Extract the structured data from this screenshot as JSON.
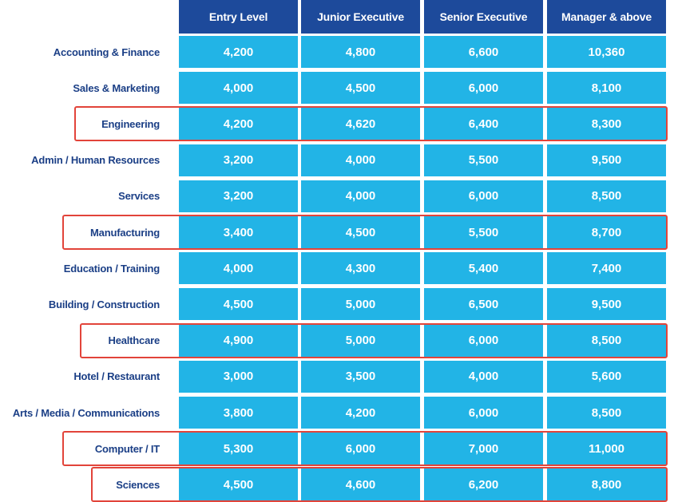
{
  "colors": {
    "header_bg": "#1d4a9b",
    "cell_bg": "#22b4e6",
    "label_text": "#1b3f86",
    "highlight": "#e2443a"
  },
  "chart_data": {
    "type": "table",
    "columns": [
      "Entry Level",
      "Junior Executive",
      "Senior Executive",
      "Manager & above"
    ],
    "rows": [
      {
        "label": "Accounting & Finance",
        "values": [
          "4,200",
          "4,800",
          "6,600",
          "10,360"
        ],
        "highlighted": false
      },
      {
        "label": "Sales & Marketing",
        "values": [
          "4,000",
          "4,500",
          "6,000",
          "8,100"
        ],
        "highlighted": false
      },
      {
        "label": "Engineering",
        "values": [
          "4,200",
          "4,620",
          "6,400",
          "8,300"
        ],
        "highlighted": true
      },
      {
        "label": "Admin / Human Resources",
        "values": [
          "3,200",
          "4,000",
          "5,500",
          "9,500"
        ],
        "highlighted": false
      },
      {
        "label": "Services",
        "values": [
          "3,200",
          "4,000",
          "6,000",
          "8,500"
        ],
        "highlighted": false
      },
      {
        "label": "Manufacturing",
        "values": [
          "3,400",
          "4,500",
          "5,500",
          "8,700"
        ],
        "highlighted": true
      },
      {
        "label": "Education / Training",
        "values": [
          "4,000",
          "4,300",
          "5,400",
          "7,400"
        ],
        "highlighted": false
      },
      {
        "label": "Building / Construction",
        "values": [
          "4,500",
          "5,000",
          "6,500",
          "9,500"
        ],
        "highlighted": false
      },
      {
        "label": "Healthcare",
        "values": [
          "4,900",
          "5,000",
          "6,000",
          "8,500"
        ],
        "highlighted": true
      },
      {
        "label": "Hotel / Restaurant",
        "values": [
          "3,000",
          "3,500",
          "4,000",
          "5,600"
        ],
        "highlighted": false
      },
      {
        "label": "Arts / Media / Communications",
        "values": [
          "3,800",
          "4,200",
          "6,000",
          "8,500"
        ],
        "highlighted": false
      },
      {
        "label": "Computer / IT",
        "values": [
          "5,300",
          "6,000",
          "7,000",
          "11,000"
        ],
        "highlighted": true
      },
      {
        "label": "Sciences",
        "values": [
          "4,500",
          "4,600",
          "6,200",
          "8,800"
        ],
        "highlighted": true
      }
    ]
  }
}
